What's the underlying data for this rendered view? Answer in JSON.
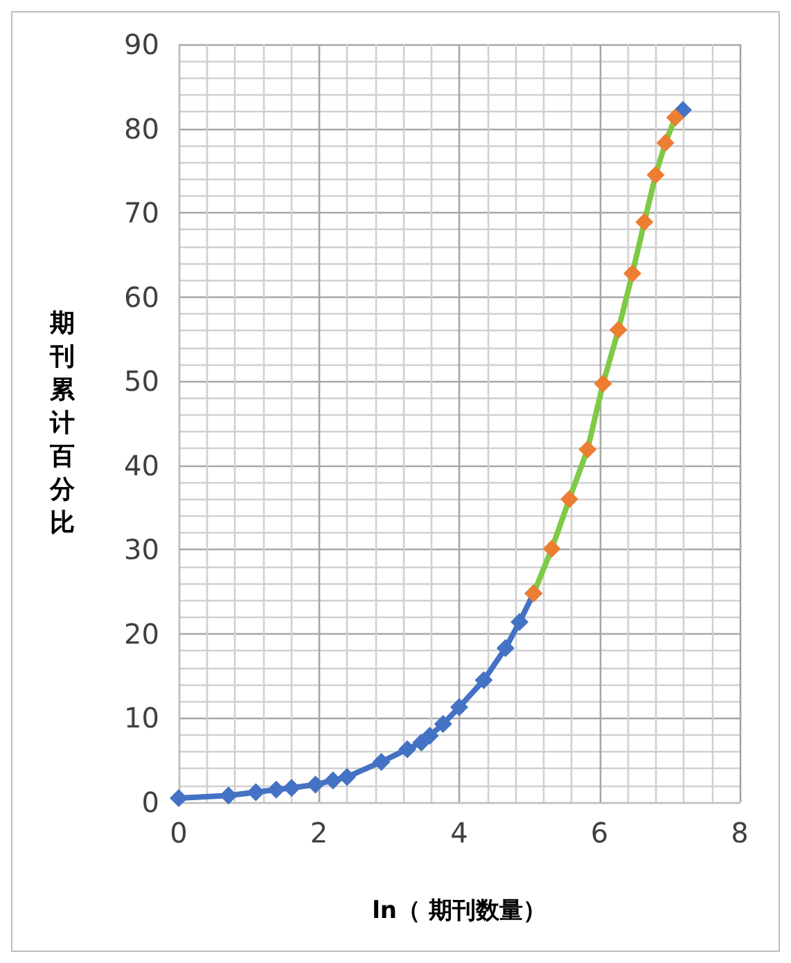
{
  "chart_data": {
    "type": "line",
    "xlabel": "ln（ 期刊数量）",
    "ylabel": "期刊累计百分比",
    "xlim": [
      0,
      8
    ],
    "xticks": [
      0,
      2,
      4,
      6,
      8
    ],
    "ylim": [
      0,
      90
    ],
    "yticks": [
      0,
      10,
      20,
      30,
      40,
      50,
      60,
      70,
      80,
      90
    ],
    "grid": true,
    "marker": "diamond",
    "line_style": "solid",
    "series": [
      {
        "color": "#4472c4",
        "x": [
          0,
          0.71,
          1.1,
          1.39,
          1.61,
          1.95,
          2.2,
          2.4,
          2.89,
          3.26,
          3.46,
          3.58,
          3.77,
          4.0,
          4.35,
          4.66,
          4.86,
          5.06,
          5.32,
          5.57,
          5.83,
          6.05,
          6.27,
          6.47,
          6.64,
          6.8,
          6.94,
          7.08,
          7.19
        ],
        "values": [
          0.5,
          0.8,
          1.2,
          1.5,
          1.7,
          2.1,
          2.6,
          3.0,
          4.8,
          6.3,
          7.1,
          7.9,
          9.3,
          11.3,
          14.5,
          18.3,
          21.4,
          24.8,
          null,
          null,
          null,
          null,
          null,
          null,
          null,
          null,
          null,
          null,
          82.2
        ]
      },
      {
        "color": "#7fca44",
        "marker": "none",
        "x": [
          5.06,
          5.32,
          5.57,
          5.83,
          6.05,
          6.27,
          6.47,
          6.64,
          6.8,
          6.94,
          7.08
        ],
        "values": [
          24.8,
          30.1,
          36.0,
          41.9,
          49.7,
          56.1,
          62.8,
          68.9,
          74.5,
          78.3,
          81.3
        ]
      },
      {
        "type": "scatter",
        "color": "#ed7d31",
        "x": [
          5.06,
          5.32,
          5.57,
          5.83,
          6.05,
          6.27,
          6.47,
          6.64,
          6.8,
          6.94,
          7.08
        ],
        "values": [
          24.8,
          30.1,
          36.0,
          41.9,
          49.7,
          56.1,
          62.8,
          68.9,
          74.5,
          78.3,
          81.3
        ]
      }
    ]
  }
}
